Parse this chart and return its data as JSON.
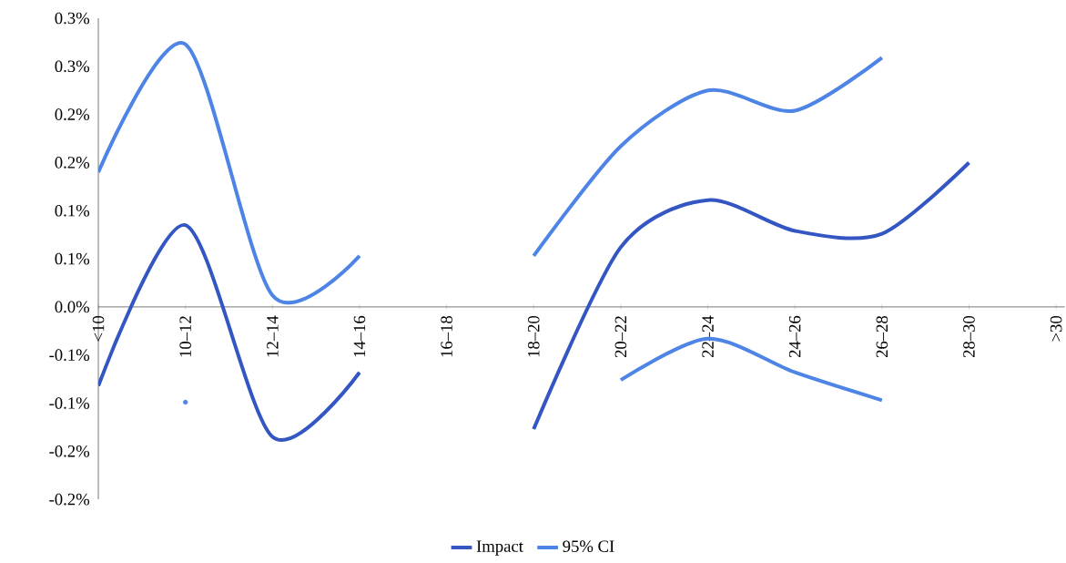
{
  "chart_data": {
    "type": "line",
    "categories": [
      "<10",
      "10–12",
      "12–14",
      "14–16",
      "16–18",
      "18–20",
      "20–22",
      "22–24",
      "24–26",
      "26–28",
      "28–30",
      ">30"
    ],
    "series": [
      {
        "name": "Impact",
        "color": "#3356c2",
        "values": [
          -0.082,
          0.085,
          -0.135,
          -0.068,
          null,
          -0.127,
          0.062,
          0.111,
          0.079,
          0.076,
          0.15,
          null
        ]
      },
      {
        "name": "95% CI",
        "color": "#4d84e6",
        "values": [
          0.14,
          0.273,
          0.012,
          0.053,
          null,
          0.053,
          0.167,
          0.225,
          0.204,
          0.259,
          null,
          null
        ]
      },
      {
        "color": "#4d84e6",
        "values": [
          null,
          -0.099,
          null,
          null,
          null,
          null,
          -0.076,
          -0.033,
          -0.068,
          -0.097,
          null,
          null
        ]
      }
    ],
    "ylim": [
      -0.2,
      0.3
    ],
    "yticks": [
      {
        "value": -0.2,
        "label": "-0.2%"
      },
      {
        "value": -0.15,
        "label": "-0.2%"
      },
      {
        "value": -0.1,
        "label": "-0.1%"
      },
      {
        "value": -0.05,
        "label": "-0.1%"
      },
      {
        "value": 0,
        "label": "0.0%"
      },
      {
        "value": 0.05,
        "label": "0.1%"
      },
      {
        "value": 0.1,
        "label": "0.1%"
      },
      {
        "value": 0.15,
        "label": "0.2%"
      },
      {
        "value": 0.2,
        "label": "0.2%"
      },
      {
        "value": 0.25,
        "label": "0.3%"
      },
      {
        "value": 0.3,
        "label": "0.3%"
      }
    ],
    "legend": "bottom",
    "grid": false
  }
}
